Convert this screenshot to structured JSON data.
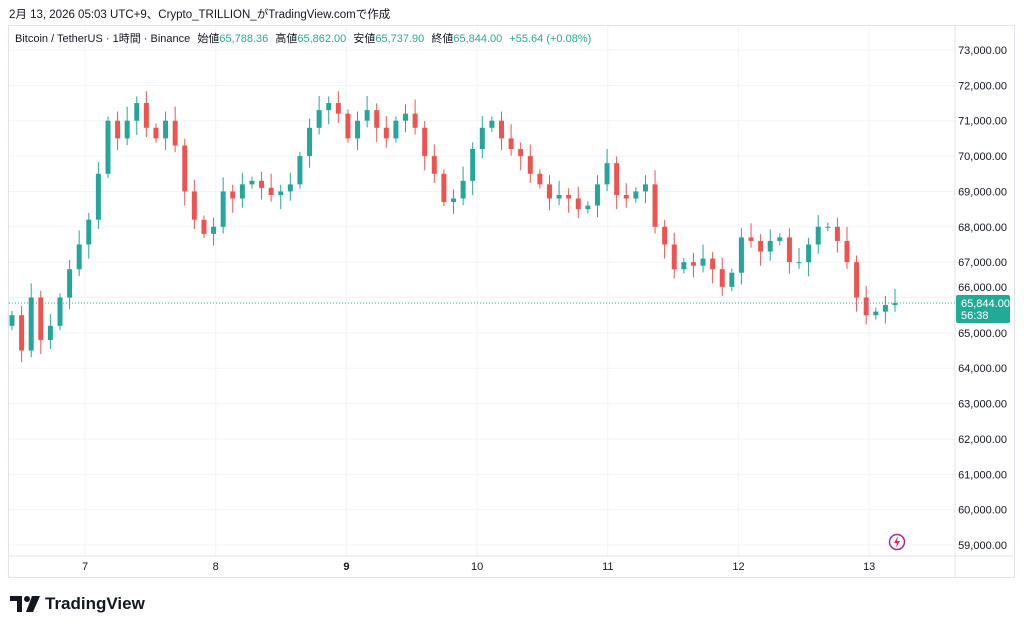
{
  "caption": "2月 13, 2026 05:03 UTC+9、Crypto_TRILLION_がTradingView.comで作成",
  "legend": {
    "symbol": "Bitcoin / TetherUS · 1時間 · Binance",
    "open_label": "始値",
    "open": "65,788.36",
    "high_label": "高値",
    "high": "65,862.00",
    "low_label": "安値",
    "low": "65,737.90",
    "close_label": "終値",
    "close": "65,844.00",
    "change": "+55.64 (+0.08%)"
  },
  "price_label": {
    "price": "65,844.00",
    "countdown": "56:38"
  },
  "logo": "TradingView",
  "colors": {
    "up": "#26a69a",
    "down": "#ef5350",
    "accent": "#22ab94"
  },
  "chart_data": {
    "type": "candlestick",
    "ylim": [
      58700,
      73500
    ],
    "y_ticks": [
      "59,000.00",
      "60,000.00",
      "61,000.00",
      "62,000.00",
      "63,000.00",
      "64,000.00",
      "65,000.00",
      "66,000.00",
      "67,000.00",
      "68,000.00",
      "69,000.00",
      "70,000.00",
      "71,000.00",
      "72,000.00",
      "73,000.00"
    ],
    "x_ticks": [
      "7",
      "8",
      "9",
      "10",
      "11",
      "12",
      "13"
    ],
    "last_price": 65844,
    "closes": [
      65500,
      64500,
      66000,
      64800,
      65200,
      66000,
      66800,
      67500,
      68200,
      69500,
      71000,
      70500,
      71000,
      71500,
      70800,
      70500,
      71000,
      70300,
      69000,
      68200,
      67800,
      68000,
      69000,
      68800,
      69200,
      69300,
      69100,
      68900,
      69000,
      69200,
      70000,
      70800,
      71300,
      71500,
      71200,
      70500,
      71000,
      71300,
      70800,
      70500,
      71000,
      71200,
      70800,
      70000,
      69500,
      68700,
      68800,
      69300,
      70200,
      70800,
      71000,
      70500,
      70200,
      70000,
      69500,
      69200,
      68800,
      68900,
      68800,
      68500,
      68600,
      69200,
      69800,
      68900,
      68800,
      69000,
      69200,
      68000,
      67500,
      66800,
      67000,
      66900,
      67100,
      66800,
      66300,
      66700,
      67700,
      67600,
      67300,
      67600,
      67700,
      67000,
      67000,
      67500,
      68000,
      68000,
      67600,
      67000,
      66000,
      65500,
      65600,
      65788,
      65844
    ]
  }
}
